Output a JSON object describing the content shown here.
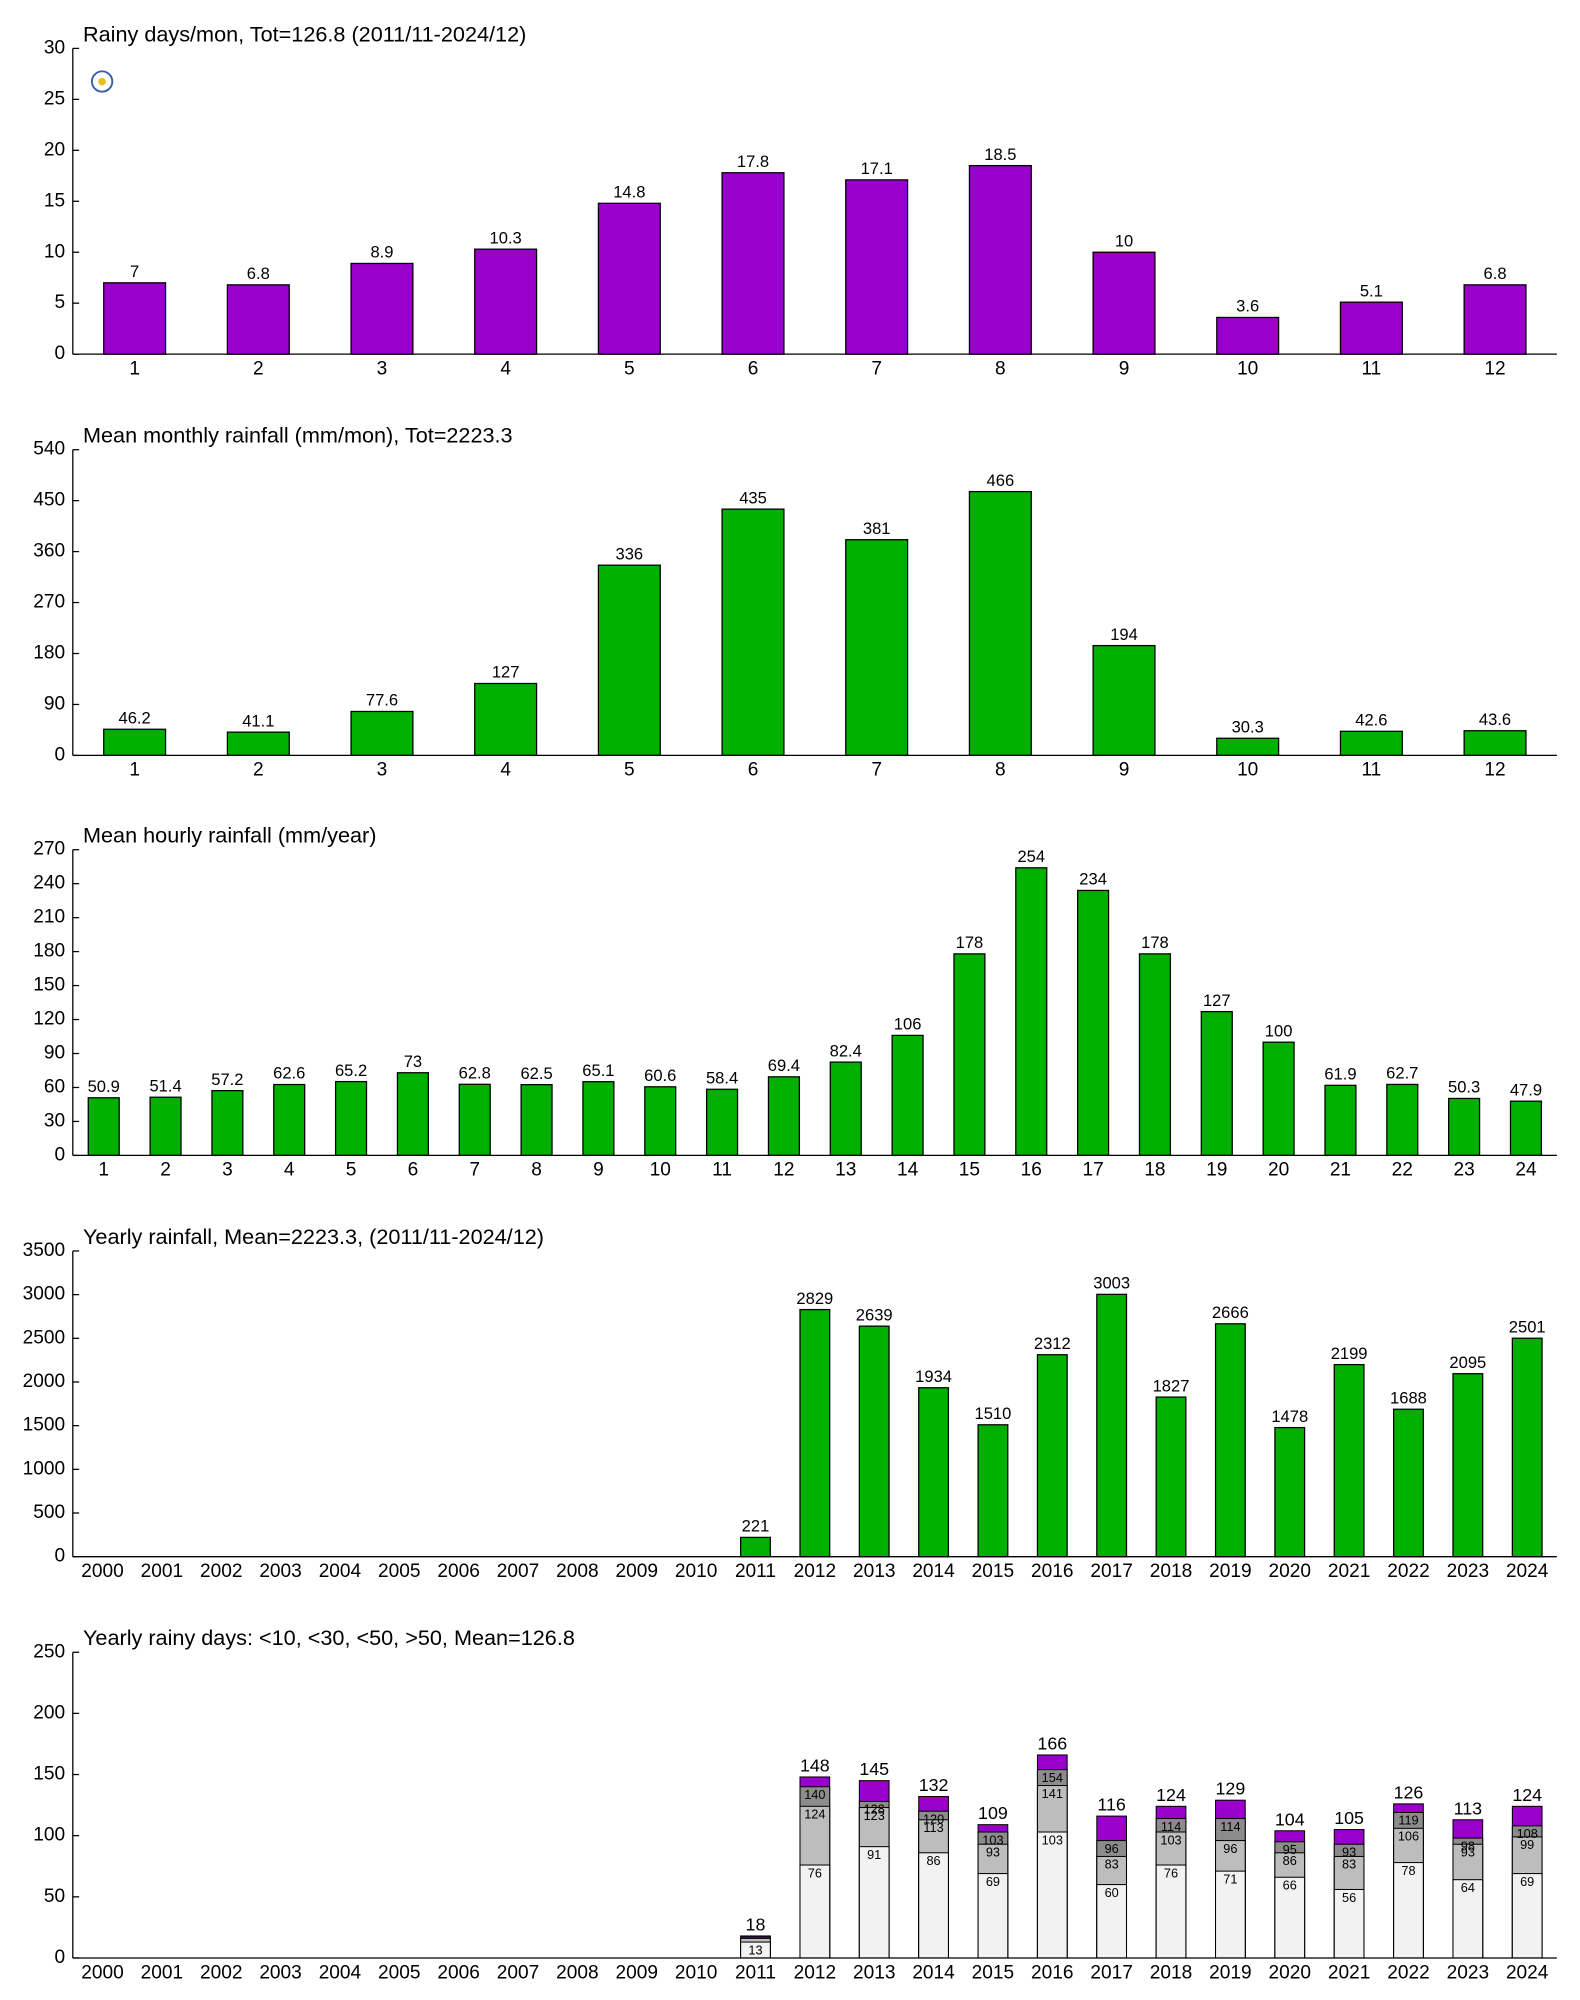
{
  "chart_data": [
    {
      "type": "bar",
      "title": "Rainy days/mon, Tot=126.8 (2011/11-2024/12)",
      "color": "#9900cc",
      "categories": [
        "1",
        "2",
        "3",
        "4",
        "5",
        "6",
        "7",
        "8",
        "9",
        "10",
        "11",
        "12"
      ],
      "values": [
        7,
        6.8,
        8.9,
        10.3,
        14.8,
        17.8,
        17.1,
        18.5,
        10,
        3.6,
        5.1,
        6.8
      ],
      "ylim": [
        0,
        30
      ],
      "yticks": [
        0,
        5,
        10,
        15,
        20,
        25,
        30
      ]
    },
    {
      "type": "bar",
      "title": "Mean monthly rainfall (mm/mon), Tot=2223.3",
      "color": "#00b000",
      "categories": [
        "1",
        "2",
        "3",
        "4",
        "5",
        "6",
        "7",
        "8",
        "9",
        "10",
        "11",
        "12"
      ],
      "values": [
        46.2,
        41.1,
        77.6,
        127,
        336,
        435,
        381,
        466,
        194,
        30.3,
        42.6,
        43.6
      ],
      "ylim": [
        0,
        540
      ],
      "yticks": [
        0,
        90,
        180,
        270,
        360,
        450,
        540
      ]
    },
    {
      "type": "bar",
      "title": "Mean hourly rainfall (mm/year)",
      "color": "#00b000",
      "categories": [
        "1",
        "2",
        "3",
        "4",
        "5",
        "6",
        "7",
        "8",
        "9",
        "10",
        "11",
        "12",
        "13",
        "14",
        "15",
        "16",
        "17",
        "18",
        "19",
        "20",
        "21",
        "22",
        "23",
        "24"
      ],
      "values": [
        50.9,
        51.4,
        57.2,
        62.6,
        65.2,
        73,
        62.8,
        62.5,
        65.1,
        60.6,
        58.4,
        69.4,
        82.4,
        106,
        178,
        254,
        234,
        178,
        127,
        100,
        61.9,
        62.7,
        50.3,
        47.9
      ],
      "ylim": [
        0,
        270
      ],
      "yticks": [
        0,
        30,
        60,
        90,
        120,
        150,
        180,
        210,
        240,
        270
      ]
    },
    {
      "type": "bar",
      "title": "Yearly rainfall, Mean=2223.3, (2011/11-2024/12)",
      "color": "#00b000",
      "categories": [
        "2000",
        "2001",
        "2002",
        "2003",
        "2004",
        "2005",
        "2006",
        "2007",
        "2008",
        "2009",
        "2010",
        "2011",
        "2012",
        "2013",
        "2014",
        "2015",
        "2016",
        "2017",
        "2018",
        "2019",
        "2020",
        "2021",
        "2022",
        "2023",
        "2024"
      ],
      "values": [
        null,
        null,
        null,
        null,
        null,
        null,
        null,
        null,
        null,
        null,
        null,
        221,
        2829,
        2639,
        1934,
        1510,
        2312,
        3003,
        1827,
        2666,
        1478,
        2199,
        1688,
        2095,
        2501
      ],
      "ylim": [
        0,
        3500
      ],
      "yticks": [
        0,
        500,
        1000,
        1500,
        2000,
        2500,
        3000,
        3500
      ]
    },
    {
      "type": "overlap_bar",
      "title": "Yearly rainy days: <10, <30, <50, >50, Mean=126.8",
      "categories": [
        "2000",
        "2001",
        "2002",
        "2003",
        "2004",
        "2005",
        "2006",
        "2007",
        "2008",
        "2009",
        "2010",
        "2011",
        "2012",
        "2013",
        "2014",
        "2015",
        "2016",
        "2017",
        "2018",
        "2019",
        "2020",
        "2021",
        "2022",
        "2023",
        "2024"
      ],
      "series": [
        {
          "color": "#f2f2f2",
          "values": [
            null,
            null,
            null,
            null,
            null,
            null,
            null,
            null,
            null,
            null,
            null,
            13,
            76,
            91,
            86,
            69,
            103,
            60,
            76,
            71,
            66,
            56,
            78,
            64,
            69
          ],
          "value_labels": [
            null,
            null,
            null,
            null,
            null,
            null,
            null,
            null,
            null,
            null,
            null,
            "13",
            "76",
            "91",
            "86",
            "69",
            "103",
            "60",
            "76",
            "71",
            "66",
            "56",
            "78",
            "64",
            "69"
          ]
        },
        {
          "color": "#bdbdbd",
          "values": [
            null,
            null,
            null,
            null,
            null,
            null,
            null,
            null,
            null,
            null,
            null,
            16,
            124,
            123,
            113,
            93,
            141,
            83,
            103,
            96,
            86,
            83,
            106,
            93,
            99
          ],
          "value_labels": [
            null,
            null,
            null,
            null,
            null,
            null,
            null,
            null,
            null,
            null,
            null,
            null,
            "124",
            "123",
            "113",
            "93",
            "141",
            "83",
            "103",
            "96",
            "86",
            "83",
            "106",
            "93",
            "99"
          ]
        },
        {
          "color": "#8c8c8c",
          "values": [
            null,
            null,
            null,
            null,
            null,
            null,
            null,
            null,
            null,
            null,
            null,
            17,
            140,
            128,
            120,
            103,
            154,
            96,
            114,
            114,
            95,
            93,
            119,
            98,
            108
          ],
          "value_labels": [
            null,
            null,
            null,
            null,
            null,
            null,
            null,
            null,
            null,
            null,
            null,
            null,
            "140",
            "128",
            "120",
            "103",
            "154",
            "96",
            "114",
            "114",
            "95",
            "93",
            "119",
            "98",
            "108"
          ]
        },
        {
          "color": "#9900cc",
          "values": [
            null,
            null,
            null,
            null,
            null,
            null,
            null,
            null,
            null,
            null,
            null,
            18,
            148,
            145,
            132,
            109,
            166,
            116,
            124,
            129,
            104,
            105,
            126,
            113,
            124
          ],
          "value_labels": [
            null,
            null,
            null,
            null,
            null,
            null,
            null,
            null,
            null,
            null,
            null,
            "18",
            "148",
            "145",
            "132",
            "109",
            "166",
            "116",
            "124",
            "129",
            "104",
            "105",
            "126",
            "113",
            "124"
          ]
        }
      ],
      "ylim": [
        0,
        250
      ],
      "yticks": [
        0,
        50,
        100,
        150,
        200,
        250
      ]
    }
  ]
}
